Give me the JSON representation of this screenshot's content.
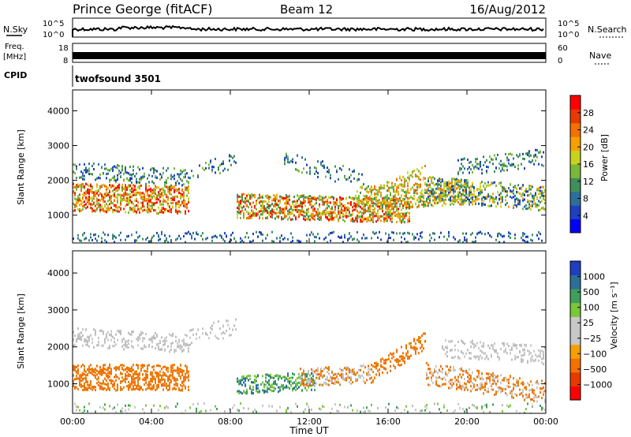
{
  "header": {
    "station": "Prince George (fitACF)",
    "beam": "Beam 12",
    "date": "16/Aug/2012"
  },
  "strips": {
    "nsky_label": "N.Sky",
    "nsky_ticks": [
      "10^5",
      "10^0"
    ],
    "nsearch_label": "N.Search",
    "freq_label_1": "Freq.",
    "freq_label_2": "[MHz]",
    "freq_ticks": [
      "18",
      "8"
    ],
    "nave_label": "Nave",
    "nave_ticks": [
      "60",
      "0"
    ],
    "cpid_label": "CPID",
    "cpid_value": "twofsound 3501"
  },
  "chart_data": [
    {
      "type": "heatmap",
      "ylabel": "Slant Range [km]",
      "xlabel": "Time UT",
      "x_ticks": [
        "00:00",
        "04:00",
        "08:00",
        "12:00",
        "16:00",
        "20:00",
        "00:00"
      ],
      "y_ticks": [
        1000,
        2000,
        3000,
        4000
      ],
      "ylim": [
        200,
        4600
      ],
      "colorbar": {
        "label": "Power [dB]",
        "ticks": [
          "28",
          "24",
          "20",
          "16",
          "12",
          "8",
          "4"
        ],
        "colors": [
          "#0000ff",
          "#1e3fbf",
          "#2d6f9a",
          "#3f8f5a",
          "#7ab83a",
          "#c8d21e",
          "#f5a000",
          "#f57000",
          "#e83a00",
          "#ff0000"
        ]
      }
    },
    {
      "type": "heatmap",
      "ylabel": "Slant Range [km]",
      "xlabel": "Time UT",
      "x_ticks": [
        "00:00",
        "04:00",
        "08:00",
        "12:00",
        "16:00",
        "20:00",
        "00:00"
      ],
      "y_ticks": [
        1000,
        2000,
        3000,
        4000
      ],
      "ylim": [
        200,
        4600
      ],
      "colorbar": {
        "label": "Velocity [m s⁻¹]",
        "ticks": [
          "1000",
          "500",
          "100",
          "25",
          "−25",
          "−100",
          "−500",
          "−1000"
        ],
        "colors": [
          "#ff0000",
          "#e83a00",
          "#f57000",
          "#f5a000",
          "#c8c8c8",
          "#c8c8c8",
          "#7ac83a",
          "#3f9f5a",
          "#2d6f9a",
          "#1e3fbf"
        ]
      }
    }
  ]
}
